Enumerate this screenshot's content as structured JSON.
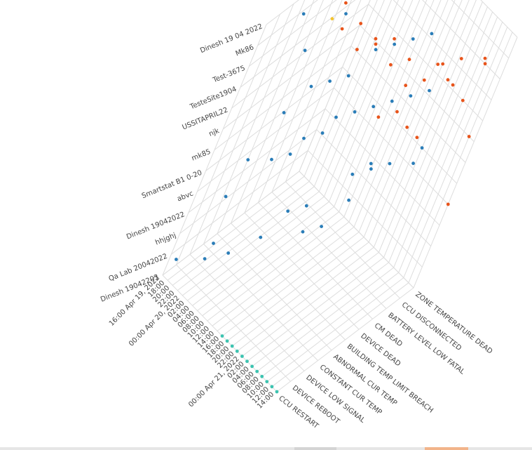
{
  "chart_data": {
    "type": "scatter",
    "three_d": true,
    "x_axis": {
      "ticks": [
        "16:00 Apr 19, 2022",
        "18:00",
        "20:00",
        "22:00",
        "00:00 Apr 20, 2022",
        "02:00",
        "04:00",
        "06:00",
        "08:00",
        "10:00",
        "12:00",
        "14:00",
        "16:00",
        "18:00",
        "20:00",
        "22:00",
        "00:00 Apr 21, 2022",
        "02:00",
        "04:00",
        "06:00",
        "08:00",
        "10:00",
        "12:00",
        "14:00"
      ]
    },
    "y_axis": {
      "ticks": [
        "CCU RESTART",
        "DEVICE REBOOT",
        "DEVICE LOW SIGNAL",
        "CONSTANT CUR TEMP",
        "ABNORMAL CUR TEMP",
        "BUILDING TEMP LIMIT BREACH",
        "DEVICE DEAD",
        "CM DEAD",
        "BATTERY LEVEL LOW FATAL",
        "CCU DISCONNECTED",
        "ZONE TEMPERATURE DEAD"
      ]
    },
    "z_axis": {
      "ticks": [
        "Dinesh 19042203",
        "Qa Lab 20042022",
        "hhjghj",
        "Dinesh 19042022",
        "abvc",
        "Smartstat B1 0-20",
        "mk85",
        "njk",
        "USSITAPRIL22",
        "TesteSite1904",
        "Test-3675",
        "Mk86",
        "Dinesh 19 04 2022"
      ]
    },
    "grid": true,
    "colors": {
      "teal": "#3cc3b0",
      "blue": "#2a7db8",
      "orange": "#e8541b",
      "yellow": "#f4c430"
    },
    "series": [
      {
        "color": "teal",
        "points": [
          [
            12,
            0,
            0
          ],
          [
            13,
            0,
            0
          ],
          [
            14,
            0,
            0
          ],
          [
            15,
            0,
            0
          ],
          [
            16,
            0,
            0
          ],
          [
            17,
            0,
            0
          ],
          [
            18,
            0,
            0
          ],
          [
            19,
            0,
            0
          ],
          [
            20,
            0,
            0
          ],
          [
            21,
            0,
            0
          ],
          [
            22,
            0,
            0
          ],
          [
            23,
            0,
            0
          ]
        ]
      },
      {
        "color": "blue",
        "points": [
          [
            1,
            0,
            1
          ],
          [
            5,
            0,
            2
          ],
          [
            4,
            1,
            2
          ],
          [
            8,
            0,
            3
          ],
          [
            9,
            2,
            3
          ],
          [
            10,
            3,
            4
          ],
          [
            11,
            4,
            4
          ],
          [
            12,
            4,
            3
          ],
          [
            13,
            5,
            3
          ],
          [
            14,
            6,
            4
          ],
          [
            15,
            6,
            6
          ],
          [
            3,
            1,
            4
          ],
          [
            4,
            1,
            6
          ],
          [
            6,
            2,
            6
          ],
          [
            7,
            3,
            6
          ],
          [
            8,
            3,
            7
          ],
          [
            9,
            4,
            7
          ],
          [
            10,
            4,
            8
          ],
          [
            11,
            5,
            8
          ],
          [
            12,
            6,
            8
          ],
          [
            13,
            7,
            8
          ],
          [
            14,
            8,
            8
          ],
          [
            15,
            9,
            8
          ],
          [
            5,
            2,
            8
          ],
          [
            6,
            3,
            9
          ],
          [
            7,
            4,
            9
          ],
          [
            8,
            5,
            9
          ],
          [
            9,
            6,
            10
          ],
          [
            10,
            7,
            10
          ],
          [
            11,
            8,
            10
          ],
          [
            12,
            9,
            10
          ],
          [
            2,
            2,
            12
          ],
          [
            3,
            3,
            10
          ],
          [
            4,
            5,
            11
          ],
          [
            6,
            6,
            12
          ],
          [
            17,
            9,
            5
          ],
          [
            16,
            10,
            5
          ],
          [
            15,
            8,
            5
          ],
          [
            14,
            7,
            5
          ],
          [
            13,
            6,
            5
          ]
        ]
      },
      {
        "color": "orange",
        "points": [
          [
            20,
            10,
            10
          ],
          [
            21,
            9,
            11
          ],
          [
            19,
            8,
            11
          ],
          [
            18,
            7,
            11
          ],
          [
            17,
            9,
            9
          ],
          [
            16,
            8,
            10
          ],
          [
            15,
            8,
            9
          ],
          [
            14,
            7,
            9
          ],
          [
            13,
            7,
            10
          ],
          [
            12,
            6,
            10
          ],
          [
            11,
            6,
            11
          ],
          [
            10,
            5,
            11
          ],
          [
            9,
            4,
            11
          ],
          [
            8,
            4,
            12
          ],
          [
            7,
            3,
            12
          ],
          [
            6,
            3,
            13
          ],
          [
            22,
            10,
            7
          ],
          [
            23,
            10,
            4
          ],
          [
            18,
            9,
            9
          ],
          [
            19,
            10,
            8
          ],
          [
            12,
            7,
            7
          ],
          [
            13,
            8,
            7
          ],
          [
            14,
            9,
            6
          ],
          [
            16,
            9,
            6
          ],
          [
            11,
            4,
            12
          ]
        ]
      },
      {
        "color": "yellow",
        "points": [
          [
            5,
            3,
            12
          ]
        ]
      }
    ]
  }
}
